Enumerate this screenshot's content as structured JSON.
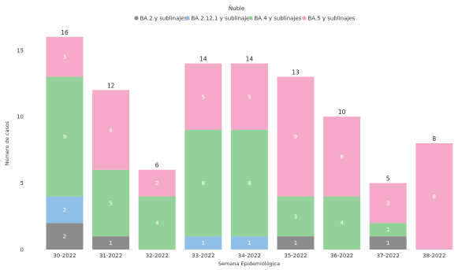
{
  "chart_data": {
    "type": "bar",
    "stacked": true,
    "title": "Ñuble",
    "xlabel": "Semana Epidemiológica",
    "ylabel": "Número de casos",
    "ylim": [
      0,
      17
    ],
    "yticks": [
      0,
      5,
      10,
      15
    ],
    "grid": false,
    "legend_position": "top",
    "categories": [
      "30-2022",
      "31-2022",
      "32-2022",
      "33-2022",
      "34-2022",
      "35-2022",
      "36-2022",
      "37-2022",
      "38-2022"
    ],
    "series": [
      {
        "name": "BA.2 y sublinajes",
        "color": "#8c8c8c",
        "values": [
          2,
          1,
          0,
          0,
          0,
          1,
          0,
          1,
          0
        ]
      },
      {
        "name": "BA.2.12.1 y sublinajes",
        "color": "#8fbfe6",
        "values": [
          2,
          0,
          0,
          1,
          1,
          0,
          0,
          0,
          0
        ]
      },
      {
        "name": "BA.4 y sublinajes",
        "color": "#94d29a",
        "values": [
          9,
          5,
          4,
          8,
          8,
          3,
          4,
          1,
          0
        ]
      },
      {
        "name": "BA.5 y sublinajes",
        "color": "#f4a9c8",
        "values": [
          3,
          6,
          2,
          5,
          5,
          9,
          6,
          3,
          8
        ]
      }
    ],
    "totals": [
      16,
      12,
      6,
      14,
      14,
      13,
      10,
      5,
      8
    ]
  }
}
